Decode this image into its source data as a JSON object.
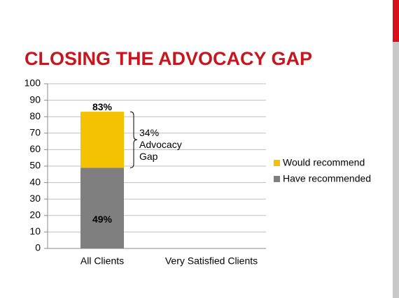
{
  "chart_data": {
    "type": "stacked_bar",
    "title": "CLOSING THE ADVOCACY GAP",
    "categories": [
      "All Clients",
      "Very Satisfied Clients"
    ],
    "series": [
      {
        "name": "Have recommended",
        "color": "#7f7f7f",
        "values": [
          49,
          null
        ],
        "value_labels": [
          "49%",
          null
        ]
      },
      {
        "name": "Would recommend",
        "color": "#f5c200",
        "values": [
          34,
          null
        ]
      }
    ],
    "totals": {
      "values": [
        83,
        null
      ],
      "value_labels": [
        "83%",
        null
      ]
    },
    "annotation": {
      "lines": [
        "34%",
        "Advocacy",
        "Gap"
      ]
    },
    "ylim": [
      0,
      100
    ],
    "yticks": [
      0,
      10,
      20,
      30,
      40,
      50,
      60,
      70,
      80,
      90,
      100
    ],
    "grid": true
  }
}
